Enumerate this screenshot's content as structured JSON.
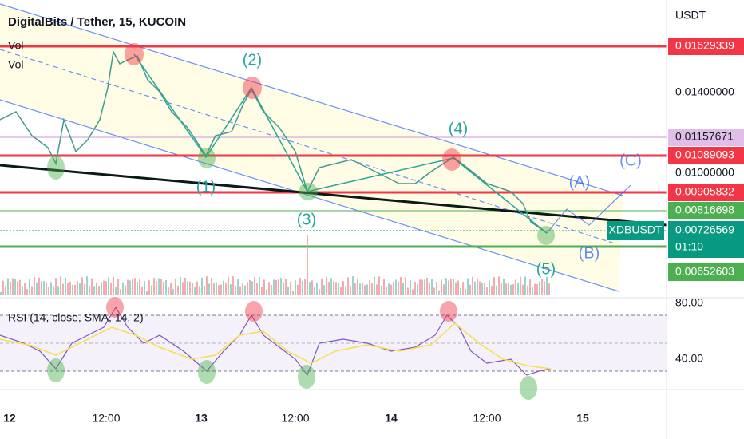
{
  "header": {
    "title": "DigitalBits / Tether, 15, KUCOIN",
    "indicators": [
      "Vol",
      "Vol"
    ]
  },
  "price_axis": {
    "unit": "USDT",
    "labels": [
      "0.01400000",
      "0.01000000"
    ]
  },
  "price_tags": [
    {
      "text": "0.01629339",
      "color": "#f23645"
    },
    {
      "text": "0.01157671",
      "color": "#e1bee7"
    },
    {
      "text": "0.01089093",
      "color": "#f23645"
    },
    {
      "text": "0.00905832",
      "color": "#f23645"
    },
    {
      "text": "0.00816698",
      "color": "#4caf50"
    },
    {
      "text": "0.00652603",
      "color": "#4caf50"
    }
  ],
  "symbol_tag": {
    "symbol": "XDBUSDT",
    "price": "0.00726569",
    "countdown": "01:10",
    "color": "#089981"
  },
  "wave_labels": [
    "(1)",
    "(2)",
    "(3)",
    "(4)",
    "(5)",
    "(A)",
    "(B)",
    "(C)"
  ],
  "rsi": {
    "title": "RSI (14, close, SMA, 14, 2)",
    "labels": [
      "80.00",
      "40.00"
    ]
  },
  "time_axis": [
    "12",
    "12:00",
    "13",
    "12:00",
    "14",
    "12:00",
    "15"
  ]
}
